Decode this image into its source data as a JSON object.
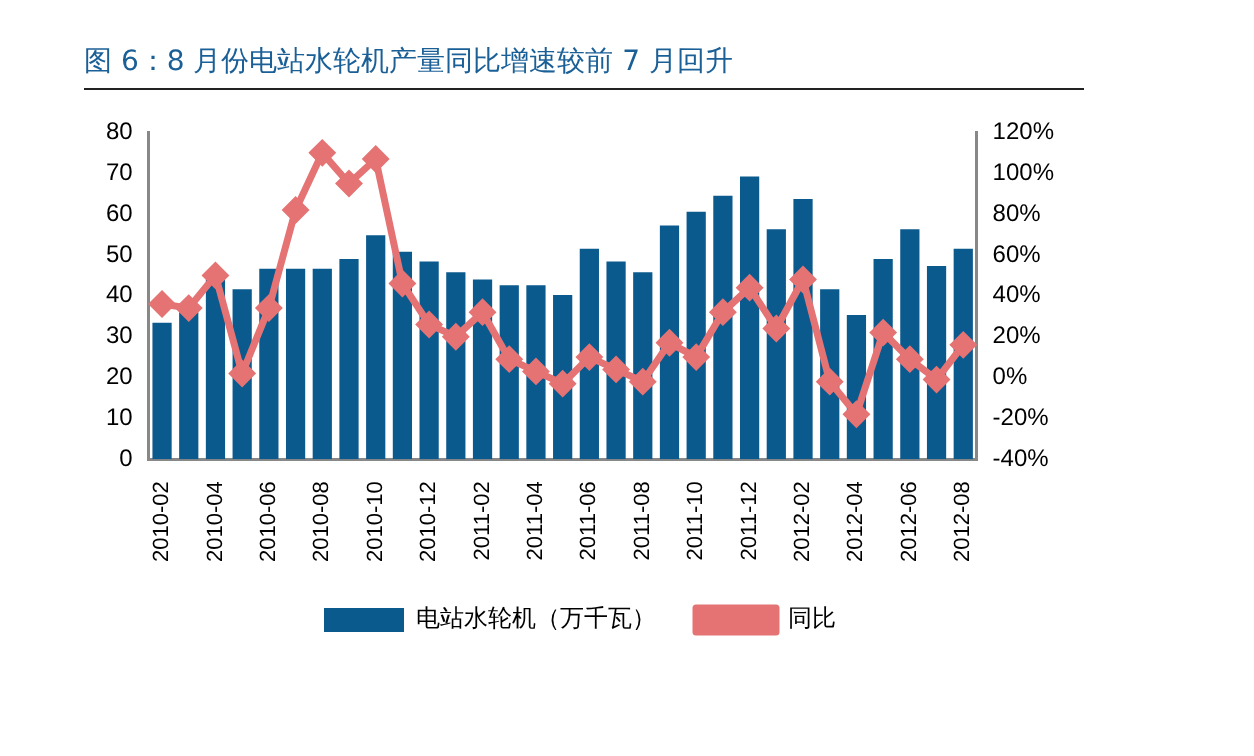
{
  "chart_data": {
    "type": "bar",
    "title": "图 6：8 月份电站水轮机产量同比增速较前 7 月回升",
    "categories": [
      "2010-02",
      null,
      "2010-04",
      null,
      "2010-06",
      null,
      "2010-08",
      null,
      "2010-10",
      null,
      "2010-12",
      null,
      "2011-02",
      null,
      "2011-04",
      null,
      "2011-06",
      null,
      "2011-08",
      null,
      "2011-10",
      null,
      "2011-12",
      null,
      "2012-02",
      null,
      "2012-04",
      null,
      "2012-06",
      null,
      "2012-08"
    ],
    "series": [
      {
        "name": "电站水轮机（万千瓦）",
        "color": "#0b5a8e",
        "values": [
          33.4,
          36,
          44,
          41.6,
          46.6,
          46.6,
          46.6,
          49,
          54.8,
          50.8,
          48.4,
          45.8,
          44,
          42.6,
          42.6,
          40.2,
          51.5,
          48.4,
          45.8,
          57.2,
          60.6,
          64.5,
          69.2,
          56.3,
          63.7,
          41.6,
          35.3,
          49,
          56.3,
          47.3,
          51.5
        ]
      },
      {
        "name": "同比",
        "type": "line",
        "axis": "y2",
        "color": "#e57373",
        "marker": "diamond",
        "values": [
          36,
          34,
          50,
          2,
          34,
          82,
          110,
          95,
          107,
          46,
          26,
          20,
          32,
          9,
          3,
          -3,
          10,
          4,
          -2,
          17,
          10,
          32,
          44,
          24,
          48,
          -2,
          -18,
          22,
          9,
          -1,
          16
        ]
      }
    ],
    "ylim": [
      0,
      80
    ],
    "yticks": [
      0,
      10,
      20,
      30,
      40,
      50,
      60,
      70,
      80
    ],
    "y2lim": [
      -40,
      120
    ],
    "y2ticks": [
      {
        "value": -40,
        "label": "-40%"
      },
      {
        "value": -20,
        "label": "-20%"
      },
      {
        "value": 0,
        "label": "0%"
      },
      {
        "value": 20,
        "label": "20%"
      },
      {
        "value": 40,
        "label": "40%"
      },
      {
        "value": 60,
        "label": "60%"
      },
      {
        "value": 80,
        "label": "80%"
      },
      {
        "value": 100,
        "label": "100%"
      },
      {
        "value": 120,
        "label": "120%"
      }
    ],
    "grid": false,
    "legend": "bottom"
  }
}
